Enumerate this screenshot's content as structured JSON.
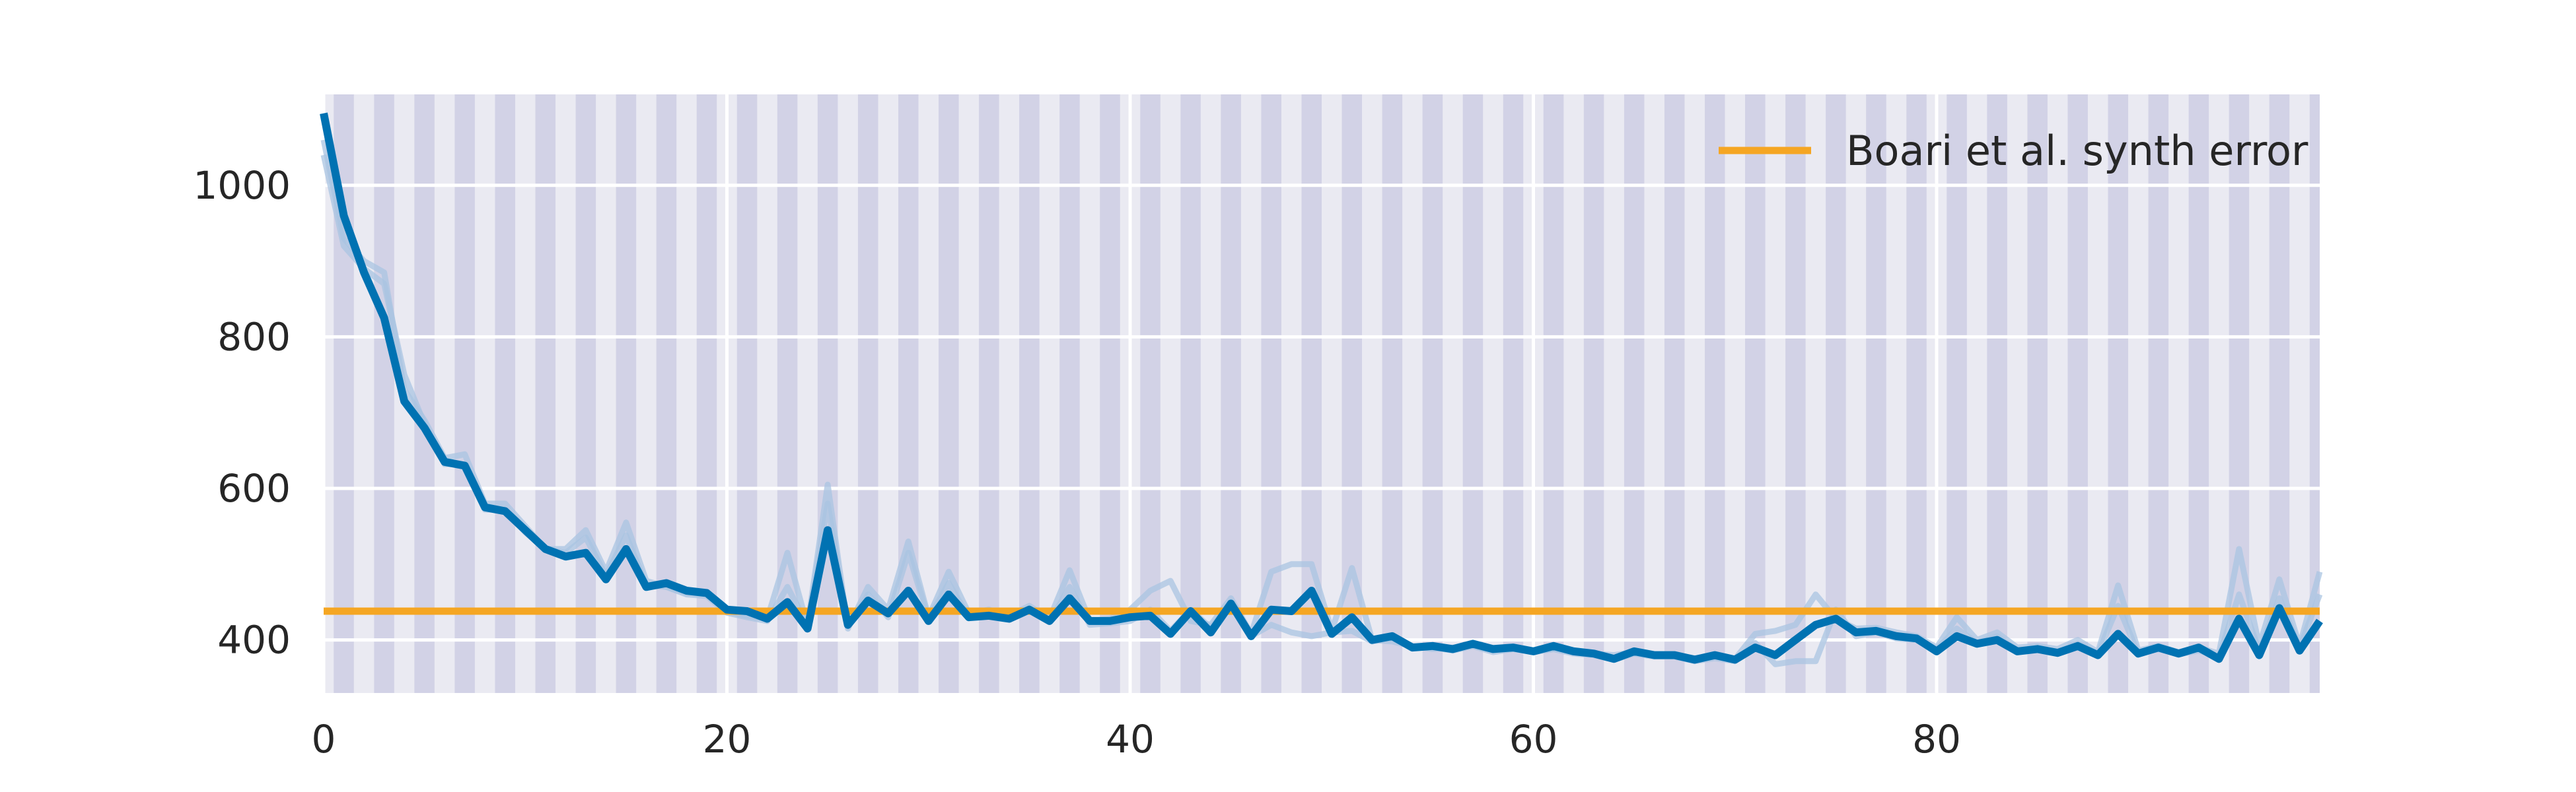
{
  "chart_data": {
    "type": "line",
    "title": "",
    "xlabel": "",
    "ylabel": "",
    "xlim": [
      0,
      99
    ],
    "ylim": [
      330,
      1120
    ],
    "x_ticks": [
      0,
      20,
      40,
      60,
      80
    ],
    "y_ticks": [
      400,
      600,
      800,
      1000
    ],
    "grid": true,
    "legend": {
      "placement": "top-right",
      "entries": [
        "Boari et al. synth error"
      ]
    },
    "shaded_bands": {
      "every": 1,
      "description": "alternating vertical bands"
    },
    "colors": {
      "background": "#eaeaf2",
      "band": "#d2d2e6",
      "grid": "#ffffff",
      "main_line": "#0072b2",
      "faint_line": "#a9c4e2",
      "reference_line": "#f5a623",
      "text": "#262626"
    },
    "reference_line": {
      "name": "Boari et al. synth error",
      "y": 438
    },
    "series": [
      {
        "role": "main",
        "values": [
          1095,
          960,
          885,
          825,
          715,
          680,
          635,
          630,
          575,
          570,
          545,
          520,
          510,
          515,
          480,
          520,
          470,
          475,
          465,
          462,
          440,
          438,
          428,
          450,
          415,
          545,
          420,
          452,
          435,
          465,
          425,
          460,
          430,
          432,
          428,
          440,
          425,
          455,
          425,
          425,
          430,
          432,
          408,
          438,
          410,
          448,
          405,
          440,
          438,
          465,
          408,
          430,
          400,
          405,
          390,
          392,
          388,
          395,
          388,
          390,
          385,
          392,
          385,
          382,
          375,
          385,
          380,
          380,
          374,
          380,
          374,
          390,
          380,
          400,
          420,
          428,
          410,
          412,
          405,
          402,
          385,
          405,
          395,
          400,
          385,
          388,
          383,
          392,
          380,
          408,
          382,
          390,
          382,
          390,
          375,
          428,
          380,
          442,
          386,
          425
        ]
      },
      {
        "role": "faint",
        "values": [
          1060,
          930,
          900,
          885,
          730,
          690,
          640,
          645,
          580,
          580,
          550,
          520,
          520,
          545,
          490,
          555,
          478,
          470,
          462,
          460,
          438,
          432,
          428,
          515,
          418,
          605,
          415,
          470,
          440,
          530,
          430,
          490,
          435,
          440,
          432,
          445,
          428,
          492,
          425,
          428,
          440,
          465,
          478,
          425,
          420,
          455,
          408,
          490,
          500,
          500,
          412,
          495,
          400,
          398,
          392,
          388,
          390,
          392,
          386,
          388,
          386,
          388,
          384,
          382,
          380,
          384,
          380,
          380,
          376,
          378,
          375,
          408,
          412,
          420,
          460,
          428,
          415,
          416,
          410,
          405,
          390,
          430,
          400,
          410,
          390,
          392,
          388,
          400,
          384,
          472,
          386,
          392,
          384,
          390,
          382,
          520,
          392,
          480,
          392,
          490
        ]
      },
      {
        "role": "faint",
        "values": [
          1040,
          920,
          890,
          870,
          750,
          685,
          632,
          632,
          572,
          572,
          542,
          520,
          515,
          535,
          485,
          538,
          472,
          470,
          460,
          458,
          436,
          430,
          425,
          470,
          420,
          580,
          418,
          460,
          430,
          515,
          428,
          475,
          430,
          436,
          430,
          442,
          424,
          470,
          420,
          422,
          425,
          440,
          412,
          440,
          416,
          450,
          405,
          420,
          410,
          405,
          410,
          412,
          398,
          402,
          390,
          390,
          386,
          392,
          384,
          388,
          384,
          388,
          382,
          380,
          374,
          382,
          378,
          378,
          372,
          376,
          372,
          396,
          368,
          372,
          372,
          440,
          405,
          410,
          402,
          400,
          388,
          415,
          396,
          405,
          386,
          388,
          384,
          395,
          382,
          445,
          382,
          388,
          381,
          386,
          378,
          460,
          386,
          455,
          390,
          460
        ]
      }
    ]
  }
}
